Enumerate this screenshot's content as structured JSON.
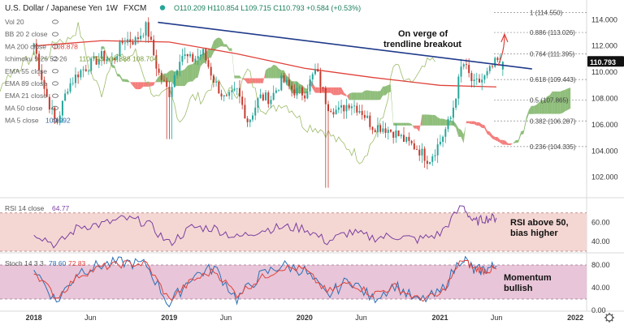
{
  "header": {
    "symbol": "U.S. Dollar / Japanese Yen",
    "interval": "1W",
    "source": "FXCM",
    "ohlc": "O110.209  H110.854  L109.715  C110.793  +0.584 (+0.53%)",
    "last_price": "110.793"
  },
  "indicator_labels": [
    {
      "text": "Vol 20",
      "value": "",
      "color": "#8a8a8a"
    },
    {
      "text": "BB 20 2 close",
      "value": "",
      "color": "#8a8a8a"
    },
    {
      "text": "MA 200 close",
      "value": "108.878",
      "color": "#e0413a"
    },
    {
      "text": "Ichimoku 9 26 52 26",
      "value": "110.793  104.888  108.704",
      "color": "#7a9a3a"
    },
    {
      "text": "EMA 55 close",
      "value": "",
      "color": "#8a8a8a"
    },
    {
      "text": "EMA 89 close",
      "value": "",
      "color": "#8a8a8a"
    },
    {
      "text": "EMA 21 close",
      "value": "",
      "color": "#8a8a8a"
    },
    {
      "text": "MA 50 close",
      "value": "",
      "color": "#8a8a8a"
    },
    {
      "text": "MA 5 close",
      "value": "109.992",
      "color": "#2a6fb5"
    }
  ],
  "annotations": {
    "breakout": "On verge of\ntrendline breakout",
    "rsi": "RSI above 50,\nbias higher",
    "stoch": "Momentum\nbullish"
  },
  "rsi_label": {
    "text": "RSI 14 close",
    "value": "64.77"
  },
  "stoch_label": {
    "text": "Stoch 14 3 3",
    "k": "78.60",
    "d": "72.83"
  },
  "colors": {
    "up": "#26a69a",
    "down": "#c43a2e",
    "trendline": "#1f3a8a",
    "ma200": "#e0413a",
    "kumo_bull": "#6aa84f",
    "kumo_bear": "#ef5350",
    "rsi_band": "#f4d7d3",
    "stoch_band": "#e8c5d8",
    "rsi_line": "#7b3fa0",
    "stoch_k": "#2a6fb5",
    "stoch_d": "#e0413a",
    "fib": "#8a8a8a",
    "arrow": "#e0413a"
  },
  "chart_data": [
    {
      "type": "line",
      "title": "U.S. Dollar / Japanese Yen, 1W, FXCM",
      "panel": "price",
      "x_axis": {
        "labels": [
          "2018",
          "Jun",
          "2019",
          "Jun",
          "2020",
          "Jun",
          "2021",
          "Jun",
          "2022"
        ]
      },
      "ylim": [
        100.5,
        115.5
      ],
      "y_ticks": [
        102.0,
        104.0,
        106.0,
        108.0,
        110.0,
        112.0,
        114.0
      ],
      "last_price": 110.793,
      "series": [
        {
          "name": "Close (weekly, approx.)",
          "x": [
            "2018-01",
            "2018-02",
            "2018-03",
            "2018-04",
            "2018-05",
            "2018-06",
            "2018-07",
            "2018-08",
            "2018-09",
            "2018-10",
            "2018-11",
            "2018-12",
            "2019-01",
            "2019-02",
            "2019-03",
            "2019-04",
            "2019-05",
            "2019-06",
            "2019-07",
            "2019-08",
            "2019-09",
            "2019-10",
            "2019-11",
            "2019-12",
            "2020-01",
            "2020-02",
            "2020-03",
            "2020-04",
            "2020-05",
            "2020-06",
            "2020-07",
            "2020-08",
            "2020-09",
            "2020-10",
            "2020-11",
            "2020-12",
            "2021-01",
            "2021-02",
            "2021-03",
            "2021-04",
            "2021-05",
            "2021-06"
          ],
          "y": [
            112.2,
            108.5,
            106.0,
            108.9,
            110.0,
            110.6,
            111.2,
            110.9,
            112.5,
            112.4,
            113.5,
            110.0,
            108.4,
            111.4,
            110.9,
            111.5,
            109.3,
            107.8,
            108.6,
            106.2,
            108.1,
            108.0,
            109.4,
            108.6,
            108.4,
            110.2,
            107.5,
            107.0,
            107.7,
            107.1,
            105.9,
            105.8,
            105.4,
            104.7,
            104.2,
            103.3,
            104.7,
            106.6,
            110.8,
            109.0,
            109.6,
            110.8
          ]
        },
        {
          "name": "MA 200",
          "x": [
            "2018-01",
            "2018-07",
            "2019-01",
            "2019-07",
            "2020-01",
            "2020-07",
            "2021-01",
            "2021-06"
          ],
          "y": [
            112.0,
            112.4,
            112.3,
            111.4,
            110.3,
            109.6,
            109.0,
            108.878
          ]
        }
      ],
      "trendline": {
        "from": [
          "2018-12",
          113.8
        ],
        "to": [
          "2021-07",
          110.6
        ]
      },
      "fibonacci_levels": [
        {
          "ratio": "1",
          "value": 114.55
        },
        {
          "ratio": "0.886",
          "value": 113.026
        },
        {
          "ratio": "0.764",
          "value": 111.395
        },
        {
          "ratio": "0.618",
          "value": 109.443
        },
        {
          "ratio": "0.5",
          "value": 107.865
        },
        {
          "ratio": "0.382",
          "value": 106.287
        },
        {
          "ratio": "0.236",
          "value": 104.335
        }
      ],
      "fib_label_text": [
        "1 (114.550)",
        "0.886 (113.026)",
        "0.764 (111.395)",
        "0.618 (109.443)",
        "0.5 (107.865)",
        "0.382 (106.287)",
        "0.236 (104.335)"
      ],
      "y_tick_text": [
        "102.000",
        "104.000",
        "106.000",
        "108.000",
        "110.000",
        "112.000",
        "114.000"
      ]
    },
    {
      "type": "line",
      "title": "RSI 14 close",
      "panel": "rsi",
      "ylim": [
        30,
        85
      ],
      "y_ticks": [
        40.0,
        60.0
      ],
      "y_tick_text": [
        "40.00",
        "60.00"
      ],
      "band": [
        30,
        70
      ],
      "series": [
        {
          "name": "RSI 14 close",
          "x": [
            "2018-01",
            "2018-03",
            "2018-05",
            "2018-07",
            "2018-09",
            "2018-11",
            "2019-01",
            "2019-03",
            "2019-05",
            "2019-07",
            "2019-09",
            "2019-11",
            "2020-01",
            "2020-03",
            "2020-05",
            "2020-07",
            "2020-09",
            "2020-11",
            "2021-01",
            "2021-03",
            "2021-04",
            "2021-05",
            "2021-06"
          ],
          "y": [
            50,
            36,
            56,
            58,
            64,
            60,
            38,
            55,
            54,
            44,
            52,
            55,
            54,
            40,
            50,
            44,
            46,
            42,
            48,
            78,
            60,
            64,
            64.77
          ]
        }
      ]
    },
    {
      "type": "line",
      "title": "Stoch 14 3 3",
      "panel": "stoch",
      "ylim": [
        0,
        100
      ],
      "y_ticks": [
        0.0,
        40.0,
        80.0
      ],
      "y_tick_text": [
        "0.00",
        "40.00",
        "80.00"
      ],
      "band": [
        20,
        80
      ],
      "series": [
        {
          "name": "%K",
          "x": [
            "2018-01",
            "2018-03",
            "2018-05",
            "2018-07",
            "2018-09",
            "2018-11",
            "2019-01",
            "2019-03",
            "2019-05",
            "2019-07",
            "2019-09",
            "2019-11",
            "2020-01",
            "2020-03",
            "2020-05",
            "2020-07",
            "2020-09",
            "2020-11",
            "2021-01",
            "2021-03",
            "2021-04",
            "2021-05",
            "2021-06"
          ],
          "y": [
            75,
            15,
            70,
            80,
            85,
            80,
            10,
            60,
            75,
            20,
            60,
            80,
            70,
            25,
            55,
            20,
            45,
            15,
            30,
            95,
            70,
            72,
            78.6
          ]
        },
        {
          "name": "%D",
          "x": [
            "2018-01",
            "2018-03",
            "2018-05",
            "2018-07",
            "2018-09",
            "2018-11",
            "2019-01",
            "2019-03",
            "2019-05",
            "2019-07",
            "2019-09",
            "2019-11",
            "2020-01",
            "2020-03",
            "2020-05",
            "2020-07",
            "2020-09",
            "2020-11",
            "2021-01",
            "2021-03",
            "2021-04",
            "2021-05",
            "2021-06"
          ],
          "y": [
            70,
            22,
            62,
            76,
            82,
            82,
            18,
            52,
            70,
            28,
            55,
            76,
            72,
            32,
            50,
            28,
            42,
            20,
            26,
            90,
            74,
            70,
            72.83
          ]
        }
      ]
    }
  ]
}
